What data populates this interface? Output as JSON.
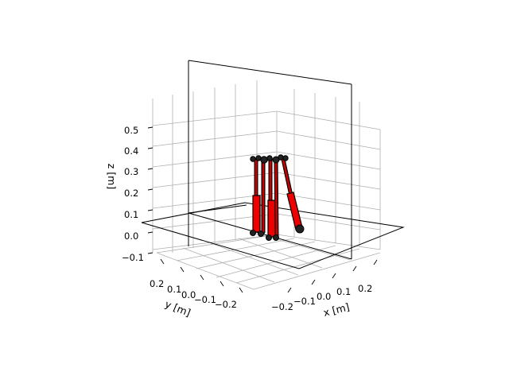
{
  "plot": {
    "xlabel": "x [m]",
    "ylabel": "y [m]",
    "zlabel": "z [m]",
    "xticks": [
      "−0.2",
      "−0.1",
      "0.0",
      "0.1",
      "0.2"
    ],
    "yticks": [
      "0.2",
      "0.1",
      "0.0",
      "−0.1",
      "−0.2"
    ],
    "zticks": [
      "0.5",
      "0.4",
      "0.3",
      "0.2",
      "0.1",
      "0.0",
      "−0.1"
    ]
  },
  "colors": {
    "leg": "#ee0000",
    "outline": "#000000",
    "grid": "#b0b0b0"
  }
}
